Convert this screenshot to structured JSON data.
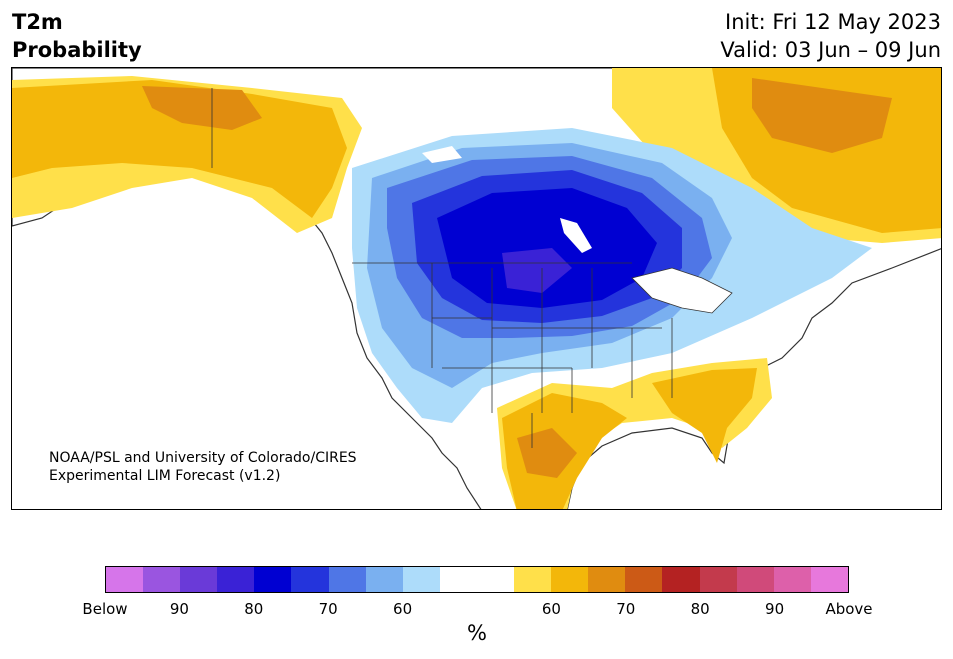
{
  "header": {
    "title_line1": "T2m",
    "title_line2": "Probability",
    "init": "Init: Fri 12 May 2023",
    "valid": "Valid: 03 Jun – 09 Jun"
  },
  "credit": {
    "line1": "NOAA/PSL and University of Colorado/CIRES",
    "line2": "Experimental LIM Forecast (v1.2)"
  },
  "colors": {
    "below": [
      "#d675ea",
      "#9a55e0",
      "#6a3ad8",
      "#3a22d6",
      "#0000d2",
      "#2434dc",
      "#4f76e6",
      "#7ab0f0",
      "#addcfa"
    ],
    "neutral": "#ffffff",
    "above": [
      "#ffe04a",
      "#f3b70a",
      "#e08c10",
      "#cc5a16",
      "#b42222",
      "#c33a4c",
      "#d04a7a",
      "#dd60aa",
      "#e778dc"
    ],
    "land_outline": "#333333"
  },
  "colorbar": {
    "ticks": [
      "Below",
      "90",
      "80",
      "70",
      "60",
      "60",
      "70",
      "80",
      "90",
      "Above"
    ],
    "unit": "%"
  }
}
